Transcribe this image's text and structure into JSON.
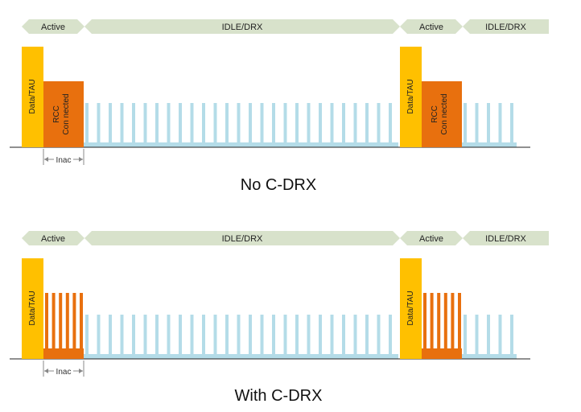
{
  "colors": {
    "arrow": "#d8e2cb",
    "data_tau": "#ffc000",
    "rrc": "#e8700e",
    "idle": "#b4dce8",
    "baseline": "#222222",
    "inac_line": "#888888"
  },
  "panels": [
    {
      "title": "No C-DRX",
      "mode": "no_cdrx",
      "phases": [
        "Active",
        "IDLE/DRX",
        "Active",
        "IDLE/DRX"
      ],
      "data_label": "Data/TAU",
      "rrc_label_line1": "RCC",
      "rrc_label_line2": "Con nected",
      "inac_label": "Inac"
    },
    {
      "title": "With C-DRX",
      "mode": "with_cdrx",
      "phases": [
        "Active",
        "IDLE/DRX",
        "Active",
        "IDLE/DRX"
      ],
      "data_label": "Data/TAU",
      "inac_label": "Inac"
    }
  ]
}
